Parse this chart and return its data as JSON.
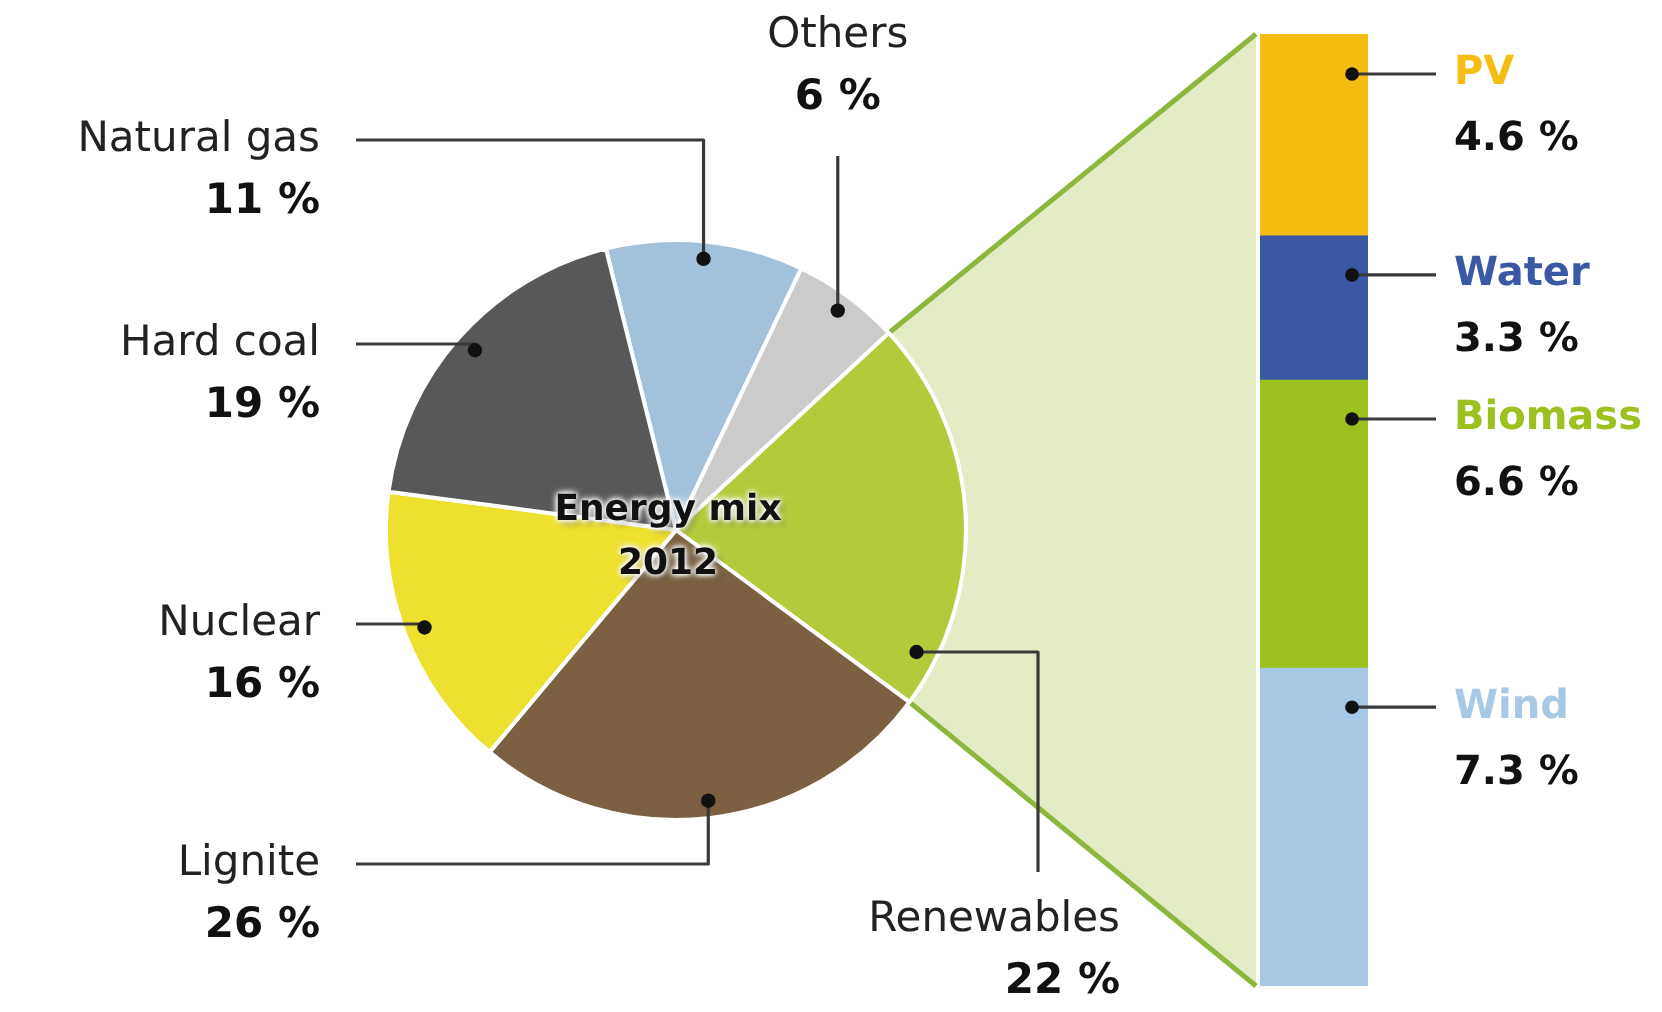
{
  "chart_data": [
    {
      "type": "pie",
      "title": "Energy mix 2012",
      "categories": [
        "Natural gas",
        "Others",
        "Renewables",
        "Lignite",
        "Nuclear",
        "Hard coal"
      ],
      "values": [
        11,
        6,
        22,
        26,
        16,
        19
      ],
      "colors": [
        "#a3c1da",
        "#cbcbcb",
        "#b3cb3b",
        "#7b6142",
        "#ede02e",
        "#585858"
      ],
      "value_labels": [
        "11 %",
        "6 %",
        "22 %",
        "26 %",
        "16 %",
        "19 %"
      ]
    },
    {
      "type": "bar",
      "stacked": true,
      "categories": [
        null
      ],
      "tick_labels": false,
      "series": [
        {
          "name": "Wind",
          "color": "#a9c8e6",
          "values": [
            7.3
          ],
          "value_labels": [
            "7.3 %"
          ]
        },
        {
          "name": "Biomass",
          "color": "#9dc11f",
          "values": [
            6.6
          ],
          "value_labels": [
            "6.6 %"
          ]
        },
        {
          "name": "Water",
          "color": "#3a58a4",
          "values": [
            3.3
          ],
          "value_labels": [
            "3.3 %"
          ]
        },
        {
          "name": "PV",
          "color": "#f5bd12",
          "values": [
            4.6
          ],
          "value_labels": [
            "4.6 %"
          ]
        }
      ]
    }
  ]
}
